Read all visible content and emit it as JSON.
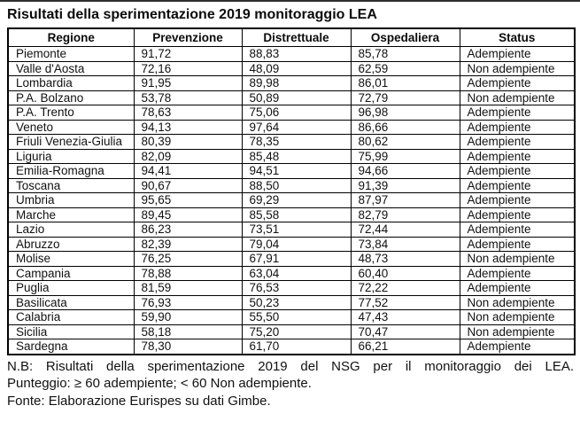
{
  "page": {
    "title": "Risultati della sperimentazione 2019 monitoraggio LEA"
  },
  "table": {
    "headers": {
      "regione": "Regione",
      "prevenzione": "Prevenzione",
      "distrettuale": "Distrettuale",
      "ospedaliera": "Ospedaliera",
      "status": "Status"
    },
    "rows": [
      {
        "regione": "Piemonte",
        "prevenzione": "91,72",
        "distrettuale": "88,83",
        "ospedaliera": "85,78",
        "status": "Adempiente"
      },
      {
        "regione": "Valle d'Aosta",
        "prevenzione": "72,16",
        "distrettuale": "48,09",
        "ospedaliera": "62,59",
        "status": "Non adempiente"
      },
      {
        "regione": "Lombardia",
        "prevenzione": "91,95",
        "distrettuale": "89,98",
        "ospedaliera": "86,01",
        "status": "Adempiente"
      },
      {
        "regione": "P.A. Bolzano",
        "prevenzione": "53,78",
        "distrettuale": "50,89",
        "ospedaliera": "72,79",
        "status": "Non adempiente"
      },
      {
        "regione": "P.A. Trento",
        "prevenzione": "78,63",
        "distrettuale": "75,06",
        "ospedaliera": "96,98",
        "status": "Adempiente"
      },
      {
        "regione": "Veneto",
        "prevenzione": "94,13",
        "distrettuale": "97,64",
        "ospedaliera": "86,66",
        "status": "Adempiente"
      },
      {
        "regione": "Friuli Venezia-Giulia",
        "prevenzione": "80,39",
        "distrettuale": "78,35",
        "ospedaliera": "80,62",
        "status": "Adempiente"
      },
      {
        "regione": "Liguria",
        "prevenzione": "82,09",
        "distrettuale": "85,48",
        "ospedaliera": "75,99",
        "status": "Adempiente"
      },
      {
        "regione": "Emilia-Romagna",
        "prevenzione": "94,41",
        "distrettuale": "94,51",
        "ospedaliera": "94,66",
        "status": "Adempiente"
      },
      {
        "regione": "Toscana",
        "prevenzione": "90,67",
        "distrettuale": "88,50",
        "ospedaliera": "91,39",
        "status": "Adempiente"
      },
      {
        "regione": "Umbria",
        "prevenzione": "95,65",
        "distrettuale": "69,29",
        "ospedaliera": "87,97",
        "status": "Adempiente"
      },
      {
        "regione": "Marche",
        "prevenzione": "89,45",
        "distrettuale": "85,58",
        "ospedaliera": "82,79",
        "status": "Adempiente"
      },
      {
        "regione": "Lazio",
        "prevenzione": "86,23",
        "distrettuale": "73,51",
        "ospedaliera": "72,44",
        "status": "Adempiente"
      },
      {
        "regione": "Abruzzo",
        "prevenzione": "82,39",
        "distrettuale": "79,04",
        "ospedaliera": "73,84",
        "status": "Adempiente"
      },
      {
        "regione": "Molise",
        "prevenzione": "76,25",
        "distrettuale": "67,91",
        "ospedaliera": "48,73",
        "status": "Non adempiente"
      },
      {
        "regione": "Campania",
        "prevenzione": "78,88",
        "distrettuale": "63,04",
        "ospedaliera": "60,40",
        "status": "Adempiente"
      },
      {
        "regione": "Puglia",
        "prevenzione": "81,59",
        "distrettuale": "76,53",
        "ospedaliera": "72,22",
        "status": "Adempiente"
      },
      {
        "regione": "Basilicata",
        "prevenzione": "76,93",
        "distrettuale": "50,23",
        "ospedaliera": "77,52",
        "status": "Non adempiente"
      },
      {
        "regione": "Calabria",
        "prevenzione": "59,90",
        "distrettuale": "55,50",
        "ospedaliera": "47,43",
        "status": "Non adempiente"
      },
      {
        "regione": "Sicilia",
        "prevenzione": "58,18",
        "distrettuale": "75,20",
        "ospedaliera": "70,47",
        "status": "Non adempiente"
      },
      {
        "regione": "Sardegna",
        "prevenzione": "78,30",
        "distrettuale": "61,70",
        "ospedaliera": "66,21",
        "status": "Adempiente"
      }
    ]
  },
  "footer": {
    "nb": "N.B: Risultati della sperimentazione 2019 del NSG per il monitoraggio dei LEA.",
    "punteggio": "Punteggio: ≥ 60 adempiente; < 60 Non adempiente.",
    "fonte": "Fonte: Elaborazione Eurispes su dati Gimbe."
  },
  "colors": {
    "text": "#111111",
    "border": "#000000",
    "top_rule": "#2e2e2e",
    "background": "#ffffff"
  }
}
